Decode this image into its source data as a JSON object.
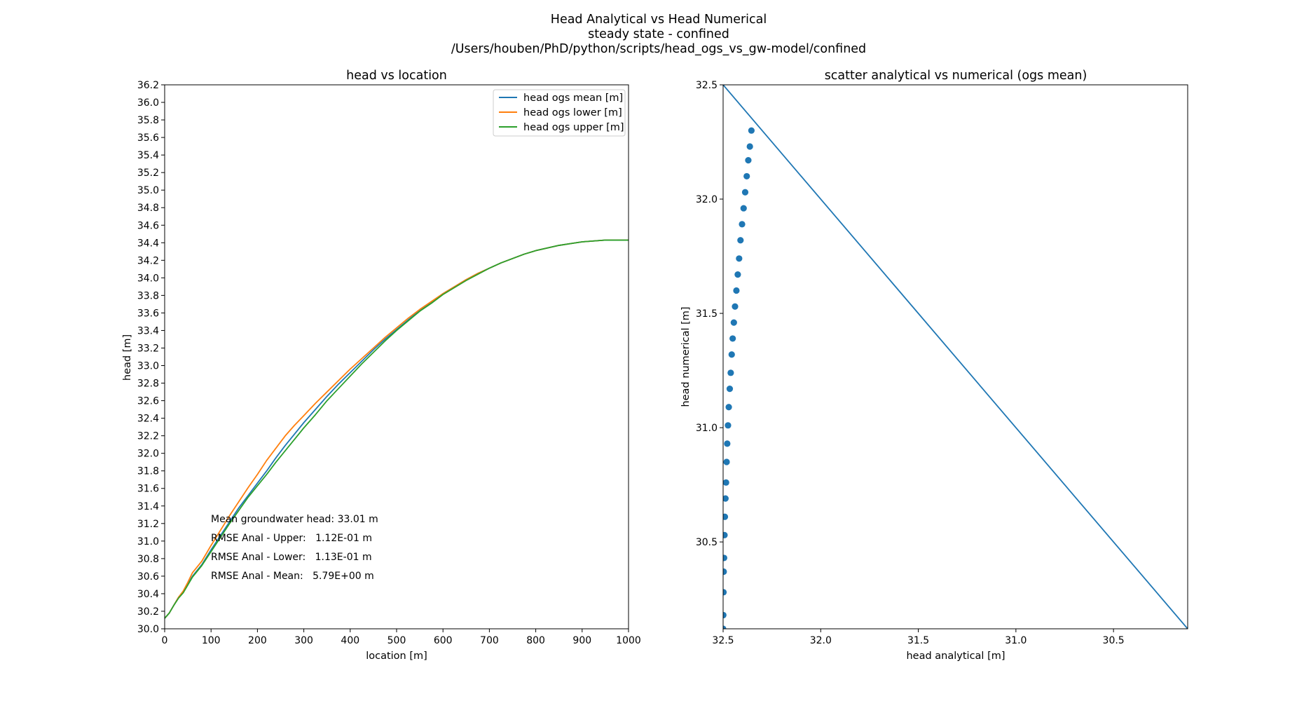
{
  "figure": {
    "title_line1": "Head Analytical vs Head Numerical",
    "title_line2": "steady state - confined",
    "title_line3": "/Users/houben/PhD/python/scripts/head_ogs_vs_gw-model/confined"
  },
  "colors": {
    "mean": "#1f77b4",
    "lower": "#ff7f0e",
    "upper": "#2ca02c",
    "scatter": "#1f77b4"
  },
  "chart_data": [
    {
      "type": "line",
      "title": "head vs location",
      "xlabel": "location [m]",
      "ylabel": "head [m]",
      "xlim": [
        0,
        1000
      ],
      "ylim": [
        30.0,
        36.2
      ],
      "xticks": [
        0,
        100,
        200,
        300,
        400,
        500,
        600,
        700,
        800,
        900,
        1000
      ],
      "xtick_labels": [
        "0",
        "100",
        "200",
        "300",
        "400",
        "500",
        "600",
        "700",
        "800",
        "900",
        "1000"
      ],
      "yticks": [
        30.0,
        30.2,
        30.4,
        30.6,
        30.8,
        31.0,
        31.2,
        31.4,
        31.6,
        31.8,
        32.0,
        32.2,
        32.4,
        32.6,
        32.8,
        33.0,
        33.2,
        33.4,
        33.6,
        33.8,
        34.0,
        34.2,
        34.4,
        34.6,
        34.8,
        35.0,
        35.2,
        35.4,
        35.6,
        35.8,
        36.0,
        36.2
      ],
      "ytick_labels": [
        "30.0",
        "30.2",
        "30.4",
        "30.6",
        "30.8",
        "31.0",
        "31.2",
        "31.4",
        "31.6",
        "31.8",
        "32.0",
        "32.2",
        "32.4",
        "32.6",
        "32.8",
        "33.0",
        "33.2",
        "33.4",
        "33.6",
        "33.8",
        "34.0",
        "34.2",
        "34.4",
        "34.6",
        "34.8",
        "35.0",
        "35.2",
        "35.4",
        "35.6",
        "35.8",
        "36.0",
        "36.2"
      ],
      "legend_position": "top-right",
      "grid": false,
      "x": [
        0,
        10,
        20,
        30,
        40,
        50,
        60,
        80,
        100,
        120,
        140,
        160,
        180,
        200,
        220,
        240,
        260,
        280,
        300,
        325,
        350,
        375,
        400,
        425,
        450,
        475,
        500,
        525,
        550,
        575,
        600,
        625,
        650,
        675,
        700,
        725,
        750,
        775,
        800,
        825,
        850,
        875,
        900,
        925,
        950,
        975,
        1000
      ],
      "series": [
        {
          "name": "head ogs mean [m]",
          "values": [
            30.12,
            30.18,
            30.27,
            30.36,
            30.42,
            30.51,
            30.6,
            30.73,
            30.9,
            31.06,
            31.22,
            31.38,
            31.52,
            31.66,
            31.8,
            31.95,
            32.09,
            32.22,
            32.35,
            32.5,
            32.65,
            32.79,
            32.92,
            33.05,
            33.18,
            33.3,
            33.41,
            33.52,
            33.63,
            33.72,
            33.82,
            33.9,
            33.98,
            34.05,
            34.11,
            34.17,
            34.22,
            34.27,
            34.31,
            34.34,
            34.37,
            34.39,
            34.41,
            34.42,
            34.43,
            34.43,
            34.43
          ]
        },
        {
          "name": "head ogs lower [m]",
          "values": [
            30.12,
            30.18,
            30.27,
            30.36,
            30.43,
            30.53,
            30.64,
            30.77,
            30.95,
            31.12,
            31.29,
            31.45,
            31.61,
            31.76,
            31.92,
            32.06,
            32.2,
            32.32,
            32.43,
            32.57,
            32.7,
            32.83,
            32.96,
            33.08,
            33.2,
            33.32,
            33.43,
            33.54,
            33.64,
            33.73,
            33.82,
            33.9,
            33.98,
            34.05,
            34.11,
            34.17,
            34.22,
            34.27,
            34.31,
            34.34,
            34.37,
            34.39,
            34.41,
            34.42,
            34.43,
            34.43,
            34.43
          ]
        },
        {
          "name": "head ogs upper [m]",
          "values": [
            30.12,
            30.18,
            30.27,
            30.35,
            30.41,
            30.5,
            30.59,
            30.72,
            30.88,
            31.04,
            31.2,
            31.35,
            31.5,
            31.63,
            31.76,
            31.9,
            32.03,
            32.16,
            32.29,
            32.44,
            32.6,
            32.74,
            32.88,
            33.02,
            33.15,
            33.28,
            33.4,
            33.51,
            33.62,
            33.71,
            33.81,
            33.89,
            33.97,
            34.04,
            34.11,
            34.17,
            34.22,
            34.27,
            34.31,
            34.34,
            34.37,
            34.39,
            34.41,
            34.42,
            34.43,
            34.43,
            34.43
          ]
        }
      ],
      "annotations": [
        "Mean groundwater head: 33.01 m",
        "RMSE Anal - Upper:   1.12E-01 m",
        "RMSE Anal - Lower:   1.13E-01 m",
        "RMSE Anal - Mean:   5.79E+00 m"
      ]
    },
    {
      "type": "scatter",
      "title": "scatter analytical vs numerical (ogs mean)",
      "xlabel": "head analytical [m]",
      "ylabel": "head numerical [m]",
      "xlim": [
        32.5,
        30.12
      ],
      "ylim": [
        30.12,
        32.5
      ],
      "x_inverted": true,
      "xticks": [
        32.5,
        32.0,
        31.5,
        31.0,
        30.5
      ],
      "xtick_labels": [
        "32.5",
        "32.0",
        "31.5",
        "31.0",
        "30.5"
      ],
      "yticks": [
        30.5,
        31.0,
        31.5,
        32.0,
        32.5
      ],
      "ytick_labels": [
        "30.5",
        "31.0",
        "31.5",
        "32.0",
        "32.5"
      ],
      "grid": false,
      "points": {
        "x": [
          32.5,
          32.499,
          32.498,
          32.497,
          32.495,
          32.493,
          32.491,
          32.488,
          32.485,
          32.482,
          32.479,
          32.475,
          32.471,
          32.466,
          32.461,
          32.456,
          32.451,
          32.445,
          32.439,
          32.432,
          32.425,
          32.418,
          32.411,
          32.403,
          32.395,
          32.387,
          32.379,
          32.371,
          32.363,
          32.355
        ],
        "y": [
          30.12,
          30.18,
          30.28,
          30.37,
          30.43,
          30.53,
          30.61,
          30.69,
          30.76,
          30.85,
          30.93,
          31.01,
          31.09,
          31.17,
          31.24,
          31.32,
          31.39,
          31.46,
          31.53,
          31.6,
          31.67,
          31.74,
          31.82,
          31.89,
          31.96,
          32.03,
          32.1,
          32.17,
          32.23,
          32.3
        ]
      },
      "reference_line": {
        "x": [
          32.5,
          30.12
        ],
        "y": [
          32.5,
          30.12
        ]
      }
    }
  ]
}
